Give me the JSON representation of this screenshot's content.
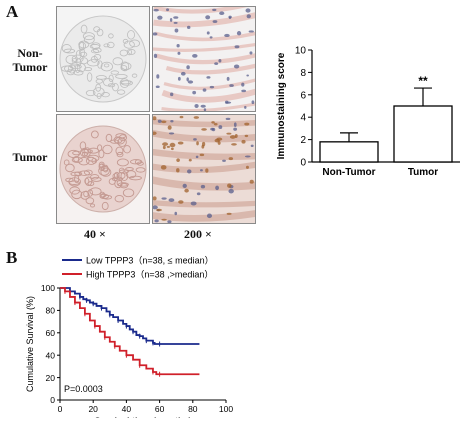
{
  "panel_a": {
    "letter": "A",
    "rows": [
      "Non-Tumor",
      "Tumor"
    ],
    "row_label_lines": [
      [
        "Non-",
        "Tumor"
      ],
      [
        "Tumor"
      ]
    ],
    "magnifications": [
      "40 ×",
      "200 ×"
    ]
  },
  "panel_b": {
    "letter": "B"
  },
  "chart_data": [
    {
      "type": "bar",
      "categories": [
        "Non-Tumor",
        "Tumor"
      ],
      "values": [
        1.8,
        5.0
      ],
      "error": [
        0.8,
        1.6
      ],
      "significance": [
        "",
        "**"
      ],
      "ylabel": "Immunostaining score",
      "ylim": [
        0,
        10
      ],
      "yticks": [
        0,
        2,
        4,
        6,
        8,
        10
      ],
      "colors": {
        "bar_fill": "#ffffff",
        "bar_stroke": "#000000"
      }
    },
    {
      "type": "line",
      "xlabel": "Survival time (months)",
      "ylabel": "Cumulative Survival (%)",
      "xlim": [
        0,
        100
      ],
      "ylim": [
        0,
        100
      ],
      "xticks": [
        0,
        20,
        40,
        60,
        80,
        100
      ],
      "yticks": [
        0,
        20,
        40,
        60,
        80,
        100
      ],
      "annotation": "P=0.0003",
      "legend_position": "top",
      "series": [
        {
          "name": "Low TPPP3（n=38, ≤ median）",
          "color": "#1a2a8c",
          "x": [
            0,
            6,
            9,
            12,
            14,
            16,
            18,
            20,
            22,
            25,
            28,
            30,
            32,
            35,
            38,
            40,
            42,
            44,
            46,
            48,
            50,
            52,
            54,
            56,
            57,
            60,
            84
          ],
          "y": [
            100,
            97,
            95,
            92,
            90,
            89,
            87,
            86,
            84,
            82,
            79,
            76,
            74,
            71,
            68,
            66,
            63,
            61,
            58,
            57,
            55,
            53,
            53,
            51,
            50,
            50,
            50
          ]
        },
        {
          "name": "High TPPP3（n=38 ,>median）",
          "color": "#d0202a",
          "x": [
            0,
            3,
            6,
            9,
            12,
            15,
            18,
            21,
            24,
            27,
            30,
            33,
            36,
            40,
            44,
            48,
            52,
            56,
            58,
            60,
            84
          ],
          "y": [
            100,
            97,
            92,
            87,
            82,
            77,
            71,
            66,
            61,
            56,
            52,
            48,
            44,
            40,
            36,
            31,
            28,
            25,
            23,
            23,
            23
          ]
        }
      ]
    }
  ],
  "colors": {
    "tissue_pink": "#e8c9c4",
    "nucleus_blue": "#5a5f8c",
    "stain_brown": "#a0622c"
  }
}
